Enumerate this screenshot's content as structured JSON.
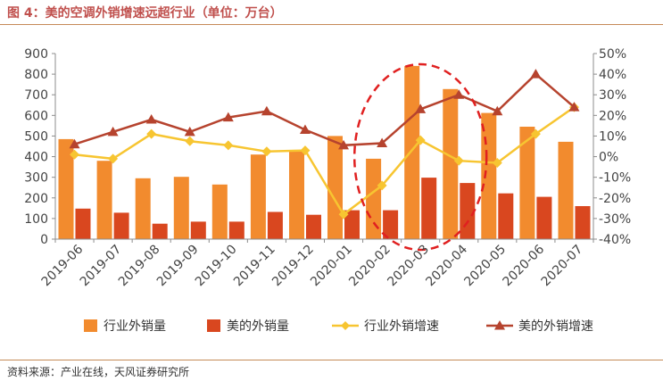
{
  "title": "图 4：美的空调外销增速远超行业（单位：万台）",
  "source": "资料来源：产业在线，天风证券研究所",
  "colors": {
    "industry_bar": "#f28b2e",
    "midea_bar": "#d9471f",
    "industry_line": "#f7c531",
    "midea_line": "#b6432e",
    "highlight": "#e02020",
    "title": "#c0504d"
  },
  "chart_data": {
    "type": "bar",
    "categories": [
      "2019-06",
      "2019-07",
      "2019-08",
      "2019-09",
      "2019-10",
      "2019-11",
      "2019-12",
      "2020-01",
      "2020-02",
      "2020-03",
      "2020-04",
      "2020-05",
      "2020-06",
      "2020-07"
    ],
    "left_axis": {
      "ylim": [
        0,
        900
      ],
      "ticks": [
        "0",
        "100",
        "200",
        "300",
        "400",
        "500",
        "600",
        "700",
        "800",
        "900"
      ]
    },
    "right_axis": {
      "ylim": [
        -40,
        50
      ],
      "ticks": [
        "-40%",
        "-30%",
        "-20%",
        "-10%",
        "0%",
        "10%",
        "20%",
        "30%",
        "40%",
        "50%"
      ]
    },
    "series": [
      {
        "name": "行业外销量",
        "type": "bar",
        "axis": "left",
        "values": [
          485,
          380,
          295,
          302,
          265,
          410,
          425,
          500,
          390,
          840,
          728,
          612,
          545,
          472
        ]
      },
      {
        "name": "美的外销量",
        "type": "bar",
        "axis": "left",
        "values": [
          148,
          128,
          75,
          85,
          85,
          132,
          118,
          140,
          140,
          298,
          272,
          222,
          205,
          160
        ]
      },
      {
        "name": "行业外销增速",
        "type": "line",
        "axis": "right",
        "marker": "diamond",
        "values": [
          1,
          -1,
          11,
          7.5,
          5.5,
          2.5,
          3,
          -28,
          -14,
          8,
          -2,
          -3,
          11,
          24
        ]
      },
      {
        "name": "美的外销增速",
        "type": "line",
        "axis": "right",
        "marker": "triangle",
        "values": [
          6,
          12,
          18,
          12,
          19,
          22,
          13,
          5.5,
          6.5,
          23,
          30,
          22,
          40,
          24
        ]
      }
    ],
    "legend": "bottom",
    "grid": false,
    "highlight": {
      "shape": "ellipse",
      "categories": [
        "2020-02",
        "2020-03",
        "2020-04"
      ]
    }
  }
}
